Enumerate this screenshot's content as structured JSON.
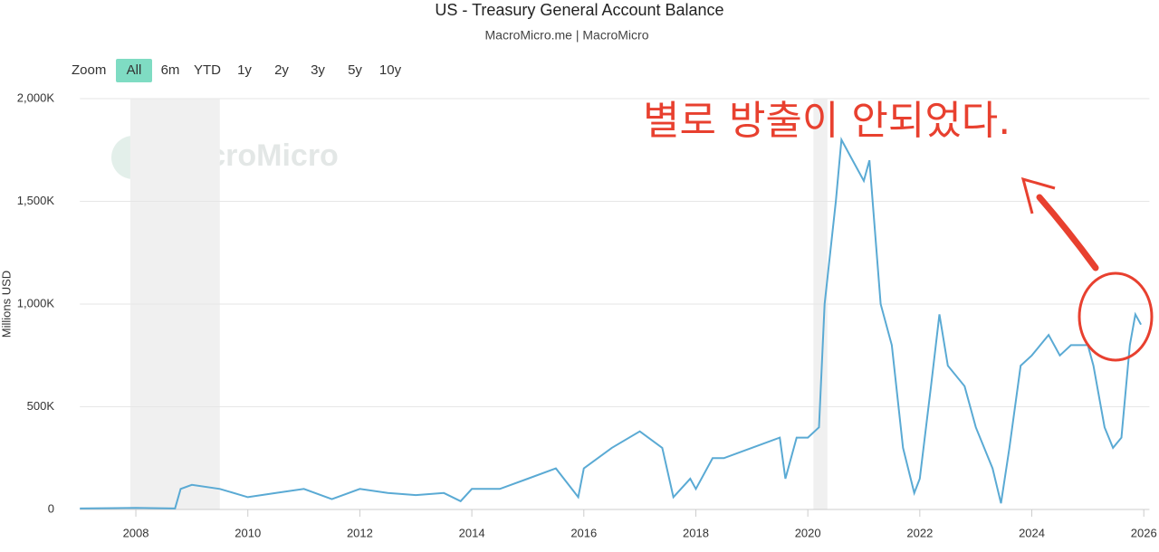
{
  "chart_data": {
    "type": "line",
    "title": "US - Treasury General Account Balance",
    "subtitle": "MacroMicro.me | MacroMicro",
    "y_label": "Millions USD",
    "watermark": "MacroMicro",
    "annotation": "별로 방출이 안되었다.",
    "range_selector": {
      "label": "Zoom",
      "buttons": [
        "All",
        "6m",
        "YTD",
        "1y",
        "2y",
        "3y",
        "5y",
        "10y"
      ],
      "active": 0
    },
    "xlim": [
      2007,
      2026.1
    ],
    "xticks": [
      2008,
      2010,
      2012,
      2014,
      2016,
      2018,
      2020,
      2022,
      2024,
      2026
    ],
    "ylim": [
      0,
      2000000
    ],
    "yticks": [
      0,
      {
        "value": 500000,
        "label": "500K"
      },
      {
        "value": 1000000,
        "label": "1,000K"
      },
      {
        "value": 1500000,
        "label": "1,500K"
      },
      {
        "value": 2000000,
        "label": "2,000K"
      }
    ],
    "grid": true,
    "shaded_periods": [
      [
        2007.9,
        2009.5
      ],
      [
        2020.1,
        2020.35
      ]
    ],
    "series": [
      {
        "name": "US - Treasury General Account Balance",
        "color": "#5aaad4",
        "x": [
          2007.0,
          2008.0,
          2008.7,
          2008.8,
          2009.0,
          2009.5,
          2010.0,
          2010.5,
          2011.0,
          2011.5,
          2012.0,
          2012.5,
          2013.0,
          2013.5,
          2013.8,
          2014.0,
          2014.5,
          2015.0,
          2015.5,
          2015.9,
          2016.0,
          2016.5,
          2017.0,
          2017.4,
          2017.6,
          2017.9,
          2018.0,
          2018.3,
          2018.5,
          2019.0,
          2019.5,
          2019.6,
          2019.8,
          2020.0,
          2020.2,
          2020.3,
          2020.5,
          2020.6,
          2020.8,
          2021.0,
          2021.1,
          2021.3,
          2021.5,
          2021.7,
          2021.9,
          2022.0,
          2022.2,
          2022.35,
          2022.5,
          2022.8,
          2023.0,
          2023.3,
          2023.45,
          2023.6,
          2023.8,
          2024.0,
          2024.3,
          2024.5,
          2024.7,
          2025.0,
          2025.1,
          2025.3,
          2025.45,
          2025.6,
          2025.75,
          2025.85,
          2025.95
        ],
        "values": [
          5000,
          8000,
          5000,
          100000,
          120000,
          100000,
          60000,
          80000,
          100000,
          50000,
          100000,
          80000,
          70000,
          80000,
          40000,
          100000,
          100000,
          150000,
          200000,
          60000,
          200000,
          300000,
          380000,
          300000,
          60000,
          150000,
          100000,
          250000,
          250000,
          300000,
          350000,
          150000,
          350000,
          350000,
          400000,
          1000000,
          1500000,
          1800000,
          1700000,
          1600000,
          1700000,
          1000000,
          800000,
          300000,
          80000,
          150000,
          600000,
          950000,
          700000,
          600000,
          400000,
          200000,
          30000,
          300000,
          700000,
          750000,
          850000,
          750000,
          800000,
          800000,
          700000,
          400000,
          300000,
          350000,
          800000,
          950000,
          900000
        ]
      }
    ]
  }
}
